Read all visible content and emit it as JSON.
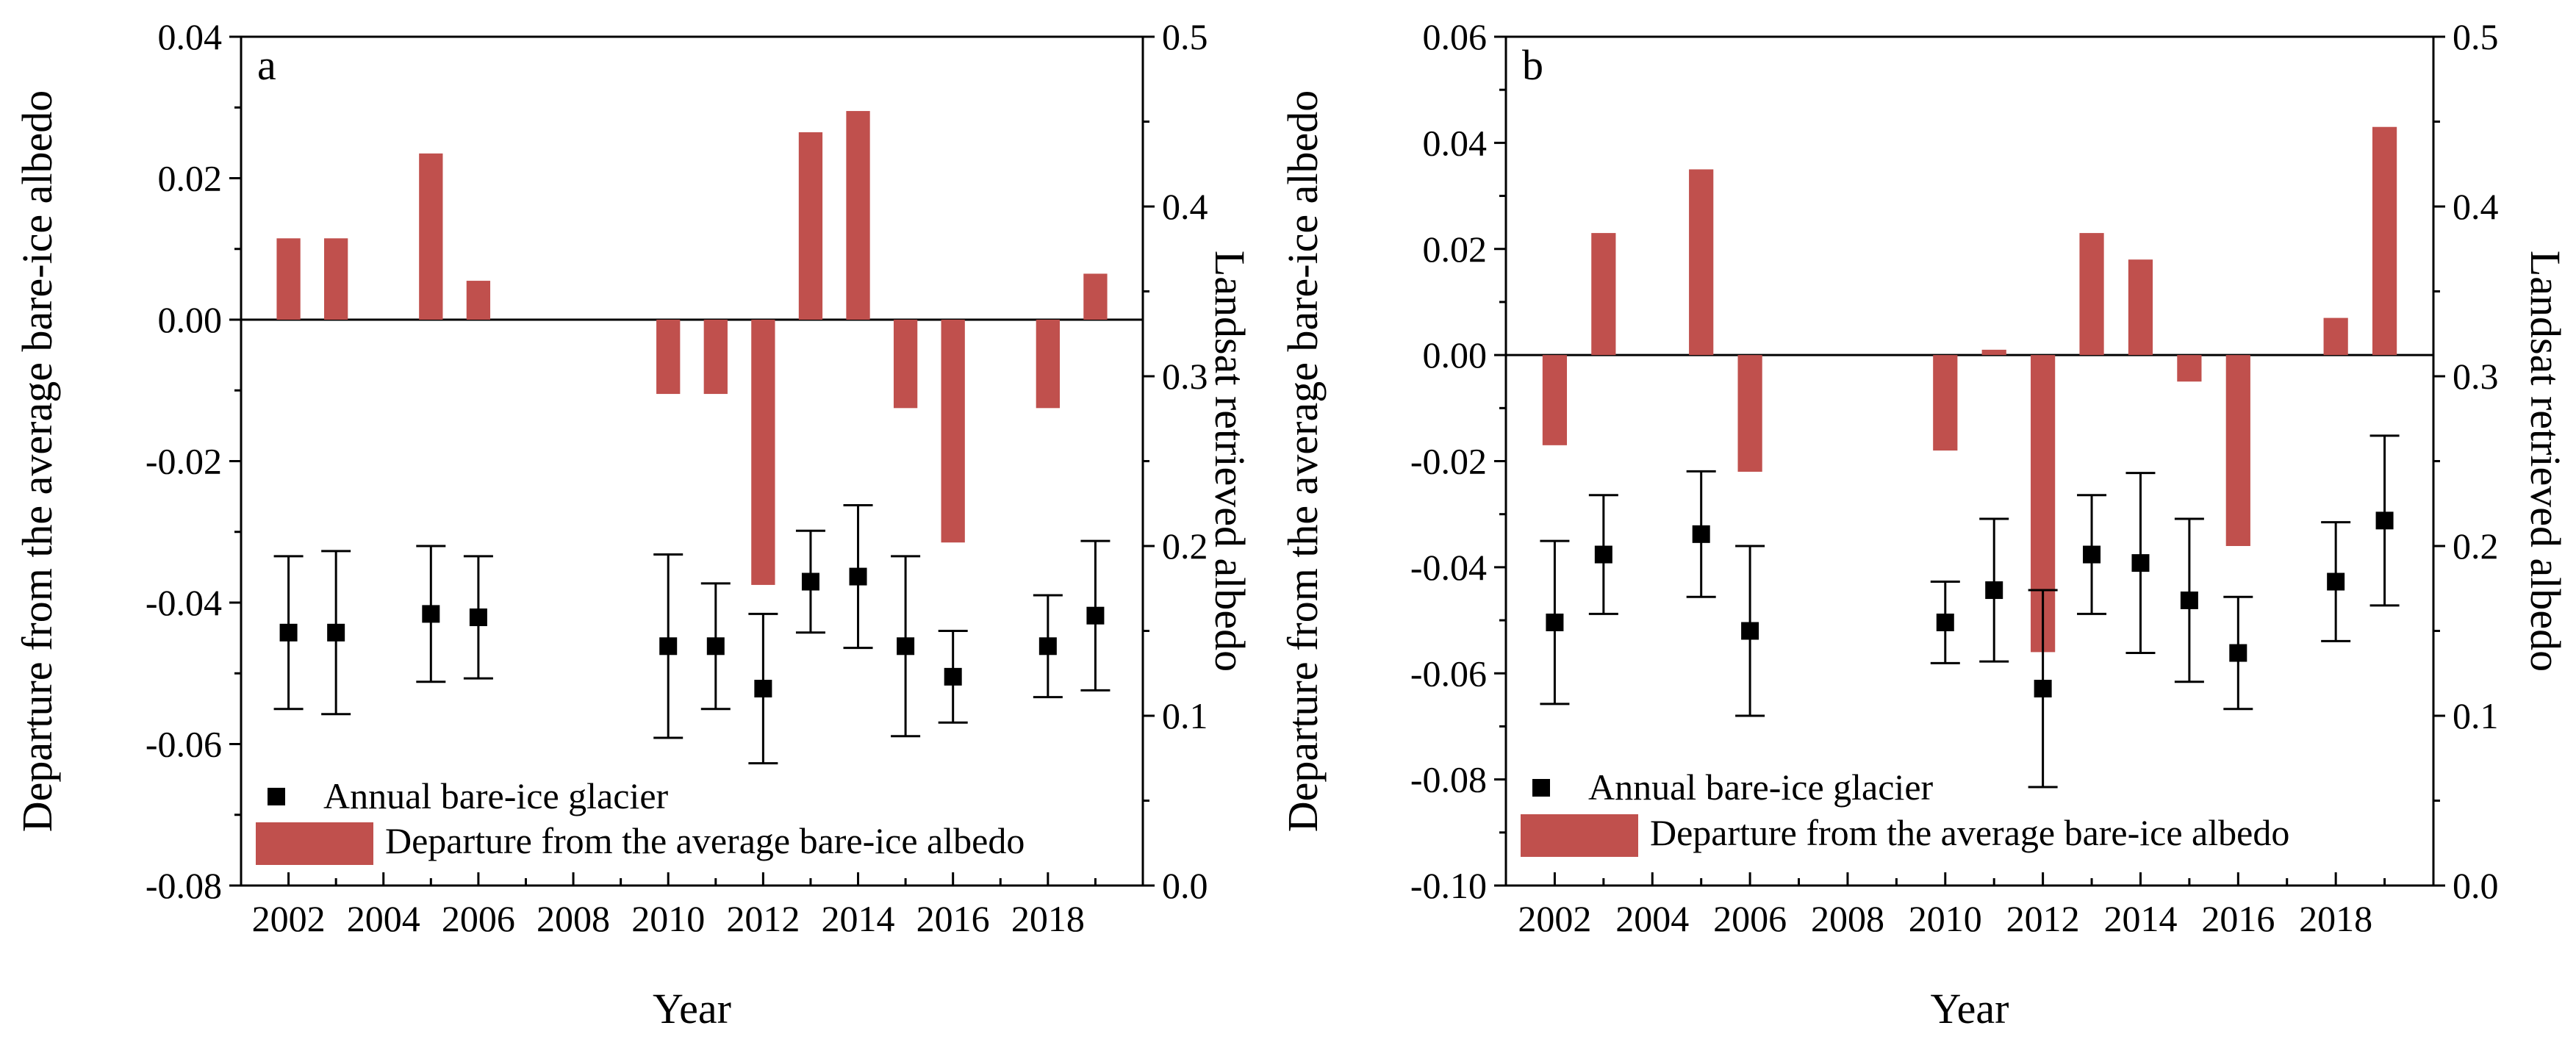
{
  "colors": {
    "bar": "#c0504d",
    "marker": "#000000",
    "axis": "#000000"
  },
  "chart_data": [
    {
      "panel": "a",
      "type": "bar+scatter",
      "xlabel": "Year",
      "ylabel_left": "Departure from the average bare-ice albedo",
      "ylabel_right": "Landsat retrieved albedo",
      "xlim": [
        2001,
        2020
      ],
      "xticks": [
        "2002",
        "2004",
        "2006",
        "2008",
        "2010",
        "2012",
        "2014",
        "2016",
        "2018"
      ],
      "ylim_left": [
        -0.08,
        0.04
      ],
      "yticks_left": [
        "-0.08",
        "-0.06",
        "-0.04",
        "-0.02",
        "0.00",
        "0.02",
        "0.04"
      ],
      "ylim_right": [
        0.0,
        0.5
      ],
      "yticks_right": [
        "0.0",
        "0.1",
        "0.2",
        "0.3",
        "0.4",
        "0.5"
      ],
      "legend": {
        "placement": "bottom-left",
        "scatter_label": "Annual bare-ice glacier",
        "bar_label": "Departure from the average bare-ice albedo"
      },
      "bars": [
        {
          "x": 2002,
          "y": 0.0115
        },
        {
          "x": 2003,
          "y": 0.0115
        },
        {
          "x": 2005,
          "y": 0.0235
        },
        {
          "x": 2006,
          "y": 0.0055
        },
        {
          "x": 2010,
          "y": -0.0105
        },
        {
          "x": 2011,
          "y": -0.0105
        },
        {
          "x": 2012,
          "y": -0.0375
        },
        {
          "x": 2013,
          "y": 0.0265
        },
        {
          "x": 2014,
          "y": 0.0295
        },
        {
          "x": 2015,
          "y": -0.0125
        },
        {
          "x": 2016,
          "y": -0.0315
        },
        {
          "x": 2018,
          "y": -0.0125
        },
        {
          "x": 2019,
          "y": 0.0065
        }
      ],
      "points": [
        {
          "x": 2002,
          "y": 0.149,
          "err": 0.045
        },
        {
          "x": 2003,
          "y": 0.149,
          "err": 0.048
        },
        {
          "x": 2005,
          "y": 0.16,
          "err": 0.04
        },
        {
          "x": 2006,
          "y": 0.158,
          "err": 0.036
        },
        {
          "x": 2010,
          "y": 0.141,
          "err": 0.054
        },
        {
          "x": 2011,
          "y": 0.141,
          "err": 0.037
        },
        {
          "x": 2012,
          "y": 0.116,
          "err": 0.044
        },
        {
          "x": 2013,
          "y": 0.179,
          "err": 0.03
        },
        {
          "x": 2014,
          "y": 0.182,
          "err": 0.042
        },
        {
          "x": 2015,
          "y": 0.141,
          "err": 0.053
        },
        {
          "x": 2016,
          "y": 0.123,
          "err": 0.027
        },
        {
          "x": 2018,
          "y": 0.141,
          "err": 0.03
        },
        {
          "x": 2019,
          "y": 0.159,
          "err": 0.044
        }
      ]
    },
    {
      "panel": "b",
      "type": "bar+scatter",
      "xlabel": "Year",
      "ylabel_left": "Departure from the average bare-ice albedo",
      "ylabel_right": "Landsat retrieved albedo",
      "xlim": [
        2001,
        2020
      ],
      "xticks": [
        "2002",
        "2004",
        "2006",
        "2008",
        "2010",
        "2012",
        "2014",
        "2016",
        "2018"
      ],
      "ylim_left": [
        -0.1,
        0.06
      ],
      "yticks_left": [
        "-0.10",
        "-0.08",
        "-0.06",
        "-0.04",
        "-0.02",
        "0.00",
        "0.02",
        "0.04",
        "0.06"
      ],
      "ylim_right": [
        0.0,
        0.5
      ],
      "yticks_right": [
        "0.0",
        "0.1",
        "0.2",
        "0.3",
        "0.4",
        "0.5"
      ],
      "legend": {
        "placement": "bottom-left",
        "scatter_label": "Annual bare-ice glacier",
        "bar_label": "Departure from the average bare-ice albedo"
      },
      "bars": [
        {
          "x": 2002,
          "y": -0.017
        },
        {
          "x": 2003,
          "y": 0.023
        },
        {
          "x": 2005,
          "y": 0.035
        },
        {
          "x": 2006,
          "y": -0.022
        },
        {
          "x": 2010,
          "y": -0.018
        },
        {
          "x": 2011,
          "y": 0.001
        },
        {
          "x": 2012,
          "y": -0.056
        },
        {
          "x": 2013,
          "y": 0.023
        },
        {
          "x": 2014,
          "y": 0.018
        },
        {
          "x": 2015,
          "y": -0.005
        },
        {
          "x": 2016,
          "y": -0.036
        },
        {
          "x": 2018,
          "y": 0.007
        },
        {
          "x": 2019,
          "y": 0.043
        }
      ],
      "points": [
        {
          "x": 2002,
          "y": 0.155,
          "err": 0.048
        },
        {
          "x": 2003,
          "y": 0.195,
          "err": 0.035
        },
        {
          "x": 2005,
          "y": 0.207,
          "err": 0.037
        },
        {
          "x": 2006,
          "y": 0.15,
          "err": 0.05
        },
        {
          "x": 2010,
          "y": 0.155,
          "err": 0.024
        },
        {
          "x": 2011,
          "y": 0.174,
          "err": 0.042
        },
        {
          "x": 2012,
          "y": 0.116,
          "err": 0.058
        },
        {
          "x": 2013,
          "y": 0.195,
          "err": 0.035
        },
        {
          "x": 2014,
          "y": 0.19,
          "err": 0.053
        },
        {
          "x": 2015,
          "y": 0.168,
          "err": 0.048
        },
        {
          "x": 2016,
          "y": 0.137,
          "err": 0.033
        },
        {
          "x": 2018,
          "y": 0.179,
          "err": 0.035
        },
        {
          "x": 2019,
          "y": 0.215,
          "err": 0.05
        }
      ]
    }
  ]
}
